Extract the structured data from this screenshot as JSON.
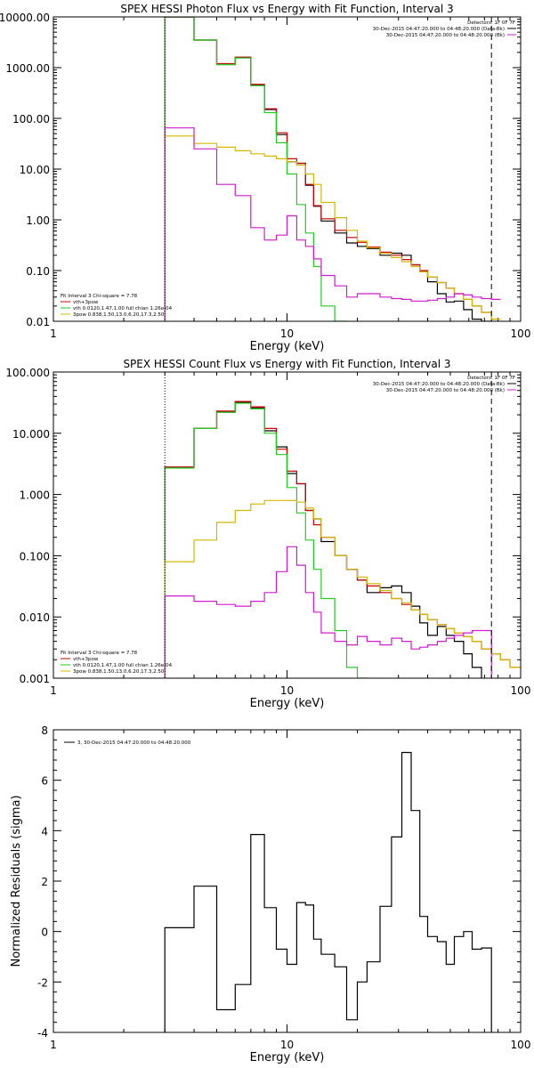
{
  "chart_data": [
    {
      "type": "line",
      "title": "SPEX HESSI Photon Flux vs Energy with Fit Function, Interval 3",
      "xlabel": "Energy (keV)",
      "ylabel": "",
      "xscale": "log",
      "yscale": "log",
      "xlim": [
        1,
        100
      ],
      "ylim": [
        0.01,
        10000
      ],
      "x_tick_labels": [
        "1",
        "10",
        "100"
      ],
      "y_tick_labels": [
        "0.01",
        "0.10",
        "1.00",
        "10.00",
        "100.00",
        "1000.00",
        "10000.00"
      ],
      "energy_bin_edges": [
        3.0,
        4.0,
        5.0,
        6.0,
        7.0,
        8.0,
        9.0,
        10.0,
        11.0,
        12.0,
        13.0,
        14.0,
        16.0,
        18.0,
        20.0,
        22.0,
        25.0,
        28.0,
        31.0,
        34.0,
        37.0,
        40.0,
        44.0,
        48.0,
        52.0,
        57.0,
        62.0,
        68.0,
        75.0,
        82.0
      ],
      "header_lines": [
        "Detectors: 1F 0F 7F",
        "30-Dec-2015 04:47:20.000 to 04:48:20.000 (Data-Bk)",
        "30-Dec-2015 04:47:20.000 to 04:48:20.000 (Bk)"
      ],
      "header_legend_colors": [
        "#000000",
        "#d01cd0"
      ],
      "legend": [
        "Fit Interval 3   Chi-square = 7.78",
        "vth+3pow",
        "vth 0.0120,1.47,1.00  full chian 1.26e-04",
        "3pow 0.838,1.50,13.0,6.20,17.3,2.50"
      ],
      "legend_colors": [
        "#000000",
        "#cc0000",
        "#22cc22",
        "#d4b800"
      ],
      "vlines": [
        {
          "x": 3.0,
          "style": "dotted"
        },
        {
          "x": 75.0,
          "style": "dashed"
        }
      ],
      "series": [
        {
          "name": "Data-Bk",
          "color": "#000000",
          "values": [
            12000,
            3500,
            1150,
            1600,
            450,
            150,
            48,
            14,
            13,
            4.8,
            1.85,
            0.95,
            0.55,
            0.35,
            0.3,
            0.27,
            0.2,
            0.22,
            0.2,
            0.13,
            0.095,
            0.06,
            0.035,
            0.024,
            0.025,
            0.017,
            0.011,
            0.005,
            0
          ]
        },
        {
          "name": "vth+3pow",
          "color": "#cc0000",
          "values": [
            12000,
            3500,
            1200,
            1600,
            470,
            155,
            52,
            16,
            13,
            5,
            1.9,
            1.05,
            0.62,
            0.45,
            0.36,
            0.29,
            0.23,
            0.2,
            0.165,
            0.13,
            0.1,
            0.075,
            0.058,
            0.045,
            0.035,
            0.027,
            0.02,
            0.015,
            0.011
          ]
        },
        {
          "name": "vth",
          "color": "#22cc22",
          "values": [
            12000,
            3500,
            1150,
            1550,
            440,
            130,
            33,
            8,
            2,
            0.55,
            0.12,
            0.02,
            0.0045,
            0,
            0,
            0,
            0,
            0,
            0,
            0,
            0,
            0,
            0,
            0,
            0,
            0,
            0,
            0,
            0
          ]
        },
        {
          "name": "3pow",
          "color": "#d4b800",
          "values": [
            45,
            32,
            27,
            23,
            20,
            18,
            16,
            14,
            12,
            8,
            5,
            2.2,
            1.1,
            0.62,
            0.38,
            0.28,
            0.22,
            0.18,
            0.15,
            0.12,
            0.095,
            0.075,
            0.058,
            0.045,
            0.035,
            0.027,
            0.02,
            0.015,
            0.011
          ]
        },
        {
          "name": "Bk",
          "color": "#d01cd0",
          "values": [
            65,
            25,
            5,
            3,
            0.7,
            0.4,
            0.5,
            1.2,
            0.4,
            0.3,
            0.17,
            0.08,
            0.05,
            0.03,
            0.035,
            0.035,
            0.03,
            0.028,
            0.027,
            0.025,
            0.025,
            0.026,
            0.028,
            0.03,
            0.035,
            0.033,
            0.03,
            0.028,
            0.027
          ]
        }
      ]
    },
    {
      "type": "line",
      "title": "SPEX HESSI Count Flux vs Energy with Fit Function, Interval 3",
      "xlabel": "Energy (keV)",
      "ylabel": "",
      "xscale": "log",
      "yscale": "log",
      "xlim": [
        1,
        100
      ],
      "ylim": [
        0.001,
        100
      ],
      "x_tick_labels": [
        "1",
        "10",
        "100"
      ],
      "y_tick_labels": [
        "0.001",
        "0.010",
        "0.100",
        "1.000",
        "10.000",
        "100.000"
      ],
      "energy_bin_edges": [
        3.0,
        4.0,
        5.0,
        6.0,
        7.0,
        8.0,
        9.0,
        10.0,
        11.0,
        12.0,
        13.0,
        14.0,
        16.0,
        18.0,
        20.0,
        22.0,
        25.0,
        28.0,
        31.0,
        34.0,
        37.0,
        40.0,
        44.0,
        48.0,
        52.0,
        57.0,
        62.0,
        68.0,
        75.0,
        82.0,
        90.0,
        100.0
      ],
      "header_lines": [
        "Detectors: 1F 0F 7F",
        "30-Dec-2015 04:47:20.000 to 04:48:20.000 (Data-Bk)",
        "30-Dec-2015 04:47:20.000 to 04:48:20.000 (Bk)"
      ],
      "header_legend_colors": [
        "#000000",
        "#d01cd0"
      ],
      "legend": [
        "Fit Interval 3   Chi-square = 7.78",
        "vth+3pow",
        "vth 0.0120,1.47,1.00  full chian 1.26e-04",
        "3pow 0.838,1.50,13.0,6.20,17.3,2.50"
      ],
      "legend_colors": [
        "#000000",
        "#cc0000",
        "#22cc22",
        "#d4b800"
      ],
      "vlines": [
        {
          "x": 3.0,
          "style": "dotted"
        },
        {
          "x": 75.0,
          "style": "dashed"
        }
      ],
      "series": [
        {
          "name": "Data-Bk",
          "color": "#000000",
          "values": [
            2.8,
            12,
            22,
            32,
            26,
            11,
            6,
            2.2,
            1.5,
            0.55,
            0.4,
            0.17,
            0.1,
            0.06,
            0.04,
            0.025,
            0.03,
            0.032,
            0.025,
            0.015,
            0.008,
            0.005,
            0.007,
            0.005,
            0.004,
            0.0025,
            0.0015,
            0,
            0,
            0,
            0
          ]
        },
        {
          "name": "vth+3pow",
          "color": "#cc0000",
          "values": [
            2.8,
            12,
            23,
            33,
            27,
            12,
            5.5,
            2.4,
            1.5,
            0.55,
            0.32,
            0.2,
            0.1,
            0.06,
            0.04,
            0.032,
            0.025,
            0.02,
            0.016,
            0.013,
            0.011,
            0.009,
            0.0075,
            0.0065,
            0.0055,
            0.0048,
            0.004,
            0.003,
            0.0025,
            0.002,
            0.0015
          ]
        },
        {
          "name": "vth",
          "color": "#22cc22",
          "values": [
            2.7,
            12,
            22,
            31,
            25,
            10,
            4.5,
            1.3,
            0.5,
            0.18,
            0.06,
            0.02,
            0.006,
            0.0015,
            0.0008,
            0,
            0,
            0,
            0,
            0,
            0,
            0,
            0,
            0,
            0,
            0,
            0,
            0,
            0,
            0,
            0
          ]
        },
        {
          "name": "3pow",
          "color": "#d4b800",
          "values": [
            0.08,
            0.18,
            0.35,
            0.55,
            0.7,
            0.8,
            0.8,
            0.8,
            0.75,
            0.6,
            0.4,
            0.2,
            0.1,
            0.06,
            0.045,
            0.035,
            0.027,
            0.02,
            0.017,
            0.013,
            0.011,
            0.009,
            0.0075,
            0.0065,
            0.0055,
            0.0048,
            0.004,
            0.003,
            0.0025,
            0.002,
            0.0015
          ]
        },
        {
          "name": "Bk",
          "color": "#d01cd0",
          "values": [
            0.022,
            0.018,
            0.016,
            0.015,
            0.018,
            0.025,
            0.055,
            0.14,
            0.07,
            0.025,
            0.012,
            0.0055,
            0.004,
            0.0035,
            0.0048,
            0.004,
            0.0035,
            0.0045,
            0.004,
            0.003,
            0.0032,
            0.0035,
            0.004,
            0.0045,
            0.005,
            0.0055,
            0.006,
            0.006,
            0,
            0,
            0
          ]
        }
      ]
    },
    {
      "type": "line",
      "title": "",
      "xlabel": "Energy (keV)",
      "ylabel": "Normalized Residuals (sigma)",
      "xscale": "log",
      "yscale": "linear",
      "xlim": [
        1,
        100
      ],
      "ylim": [
        -4,
        8
      ],
      "x_tick_labels": [
        "1",
        "10",
        "100"
      ],
      "y_tick_labels": [
        "-4",
        "-2",
        "0",
        "2",
        "4",
        "6",
        "8"
      ],
      "energy_bin_edges": [
        3.0,
        4.0,
        5.0,
        6.0,
        7.0,
        8.0,
        9.0,
        10.0,
        11.0,
        12.0,
        13.0,
        14.0,
        16.0,
        18.0,
        20.0,
        22.0,
        25.0,
        28.0,
        31.0,
        34.0,
        37.0,
        40.0,
        44.0,
        48.0,
        52.0,
        57.0,
        62.0,
        68.0,
        75.0
      ],
      "legend": [
        "3, 30-Dec-2015 04:47:20.000 to 04:48:20.000"
      ],
      "legend_colors": [
        "#000000"
      ],
      "series": [
        {
          "name": "residuals",
          "color": "#000000",
          "values": [
            0.15,
            1.8,
            -3.1,
            -2.1,
            3.85,
            0.95,
            -0.7,
            -1.3,
            1.15,
            1.05,
            -0.3,
            -0.9,
            -1.4,
            -3.5,
            -2.0,
            -1.2,
            1.0,
            3.75,
            7.1,
            4.8,
            0.6,
            -0.2,
            -0.4,
            -1.3,
            -0.2,
            0.0,
            -0.7,
            -0.65
          ]
        }
      ]
    }
  ]
}
